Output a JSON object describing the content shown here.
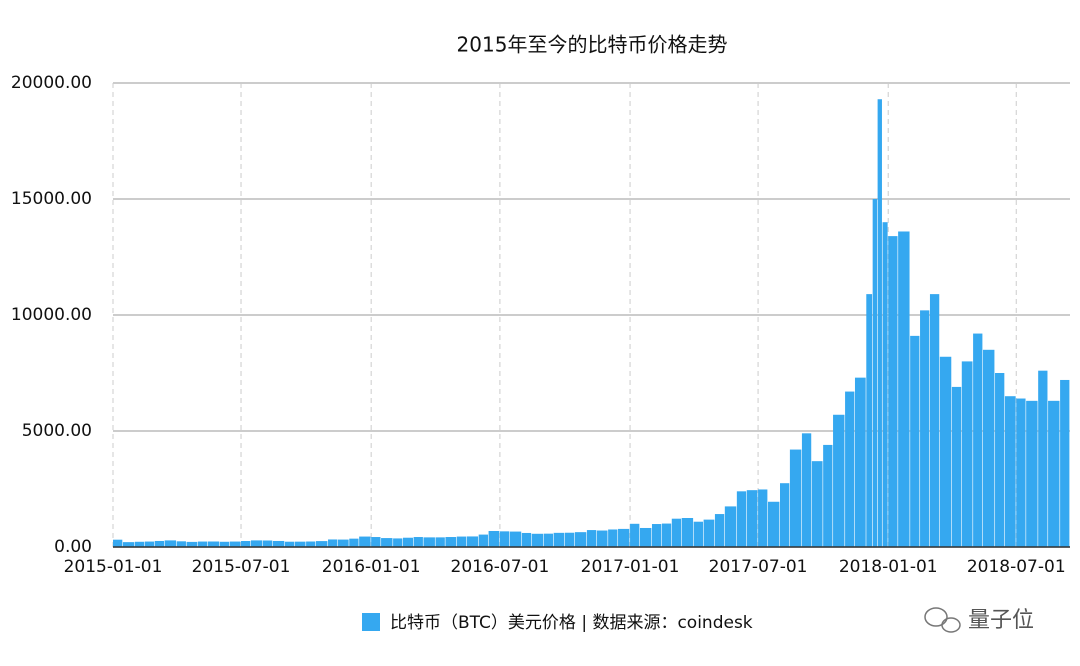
{
  "chart_data": {
    "type": "bar",
    "title": "2015年至今的比特币价格走势",
    "x": [
      "2015-01-01",
      "2015-01-15",
      "2015-02-01",
      "2015-02-15",
      "2015-03-01",
      "2015-03-15",
      "2015-04-01",
      "2015-04-15",
      "2015-05-01",
      "2015-05-15",
      "2015-06-01",
      "2015-06-15",
      "2015-07-01",
      "2015-07-15",
      "2015-08-01",
      "2015-08-15",
      "2015-09-01",
      "2015-09-15",
      "2015-10-01",
      "2015-10-15",
      "2015-11-01",
      "2015-11-15",
      "2015-12-01",
      "2015-12-15",
      "2016-01-01",
      "2016-01-15",
      "2016-02-01",
      "2016-02-15",
      "2016-03-01",
      "2016-03-15",
      "2016-04-01",
      "2016-04-15",
      "2016-05-01",
      "2016-05-15",
      "2016-06-01",
      "2016-06-15",
      "2016-07-01",
      "2016-07-15",
      "2016-08-01",
      "2016-08-15",
      "2016-09-01",
      "2016-09-15",
      "2016-10-01",
      "2016-10-15",
      "2016-11-01",
      "2016-11-15",
      "2016-12-01",
      "2016-12-15",
      "2017-01-01",
      "2017-01-15",
      "2017-02-01",
      "2017-02-15",
      "2017-03-01",
      "2017-03-15",
      "2017-04-01",
      "2017-04-15",
      "2017-05-01",
      "2017-05-15",
      "2017-06-01",
      "2017-06-15",
      "2017-07-01",
      "2017-07-15",
      "2017-08-01",
      "2017-08-15",
      "2017-09-01",
      "2017-09-15",
      "2017-10-01",
      "2017-10-15",
      "2017-11-01",
      "2017-11-15",
      "2017-12-01",
      "2017-12-10",
      "2017-12-17",
      "2017-12-24",
      "2018-01-01",
      "2018-01-15",
      "2018-02-01",
      "2018-02-15",
      "2018-03-01",
      "2018-03-15",
      "2018-04-01",
      "2018-04-15",
      "2018-05-01",
      "2018-05-15",
      "2018-06-01",
      "2018-06-15",
      "2018-07-01",
      "2018-07-15",
      "2018-08-01",
      "2018-08-15",
      "2018-09-01"
    ],
    "series": [
      {
        "name": "比特币（BTC）美元价格 | 数据来源：coindesk",
        "color": "#35a8f0",
        "values": [
          315,
          210,
          225,
          235,
          260,
          285,
          245,
          220,
          235,
          237,
          225,
          235,
          258,
          285,
          280,
          260,
          228,
          230,
          237,
          255,
          325,
          320,
          360,
          450,
          430,
          385,
          370,
          400,
          430,
          415,
          415,
          430,
          450,
          455,
          535,
          690,
          675,
          665,
          605,
          570,
          575,
          610,
          615,
          640,
          730,
          710,
          755,
          780,
          1000,
          820,
          990,
          1010,
          1220,
          1250,
          1090,
          1180,
          1420,
          1750,
          2400,
          2450,
          2480,
          1950,
          2750,
          4200,
          4900,
          3700,
          4400,
          5700,
          6700,
          7300,
          10900,
          15000,
          19300,
          14000,
          13400,
          13600,
          9100,
          10200,
          10900,
          8200,
          6900,
          8000,
          9200,
          8500,
          7500,
          6500,
          6400,
          6300,
          7600,
          6300,
          7200
        ]
      }
    ],
    "xlim": [
      "2015-01-01",
      "2018-09-15"
    ],
    "xticks": [
      "2015-01-01",
      "2015-07-01",
      "2016-01-01",
      "2016-07-01",
      "2017-01-01",
      "2017-07-01",
      "2018-01-01",
      "2018-07-01"
    ],
    "ylim": [
      0,
      20000
    ],
    "yticks": [
      {
        "value": 0,
        "label": "0.00"
      },
      {
        "value": 5000,
        "label": "5000.00"
      },
      {
        "value": 10000,
        "label": "10000.00"
      },
      {
        "value": 15000,
        "label": "15000.00"
      },
      {
        "value": 20000,
        "label": "20000.00"
      }
    ],
    "grid": true,
    "watermark": "量子位"
  }
}
